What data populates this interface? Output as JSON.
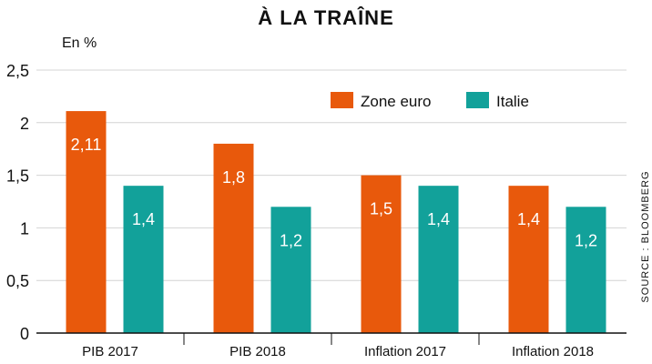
{
  "chart_data": {
    "type": "bar",
    "title": "À LA TRAÎNE",
    "unit_label": "En %",
    "source": "SOURCE : BLOOMBERG",
    "categories": [
      "PIB 2017",
      "PIB 2018",
      "Inflation 2017",
      "Inflation 2018"
    ],
    "series": [
      {
        "name": "Zone euro",
        "color": "#e8590c",
        "values": [
          2.11,
          1.8,
          1.5,
          1.4
        ],
        "labels": [
          "2,11",
          "1,8",
          "1,5",
          "1,4"
        ]
      },
      {
        "name": "Italie",
        "color": "#12a19a",
        "values": [
          1.4,
          1.2,
          1.4,
          1.2
        ],
        "labels": [
          "1,4",
          "1,2",
          "1,4",
          "1,2"
        ]
      }
    ],
    "yticks": [
      0,
      0.5,
      1,
      1.5,
      2,
      2.5
    ],
    "ytick_labels": [
      "0",
      "0,5",
      "1",
      "1,5",
      "2",
      "2,5"
    ],
    "ylim": [
      0,
      2.5
    ],
    "grid": true,
    "legend": "top-right"
  }
}
